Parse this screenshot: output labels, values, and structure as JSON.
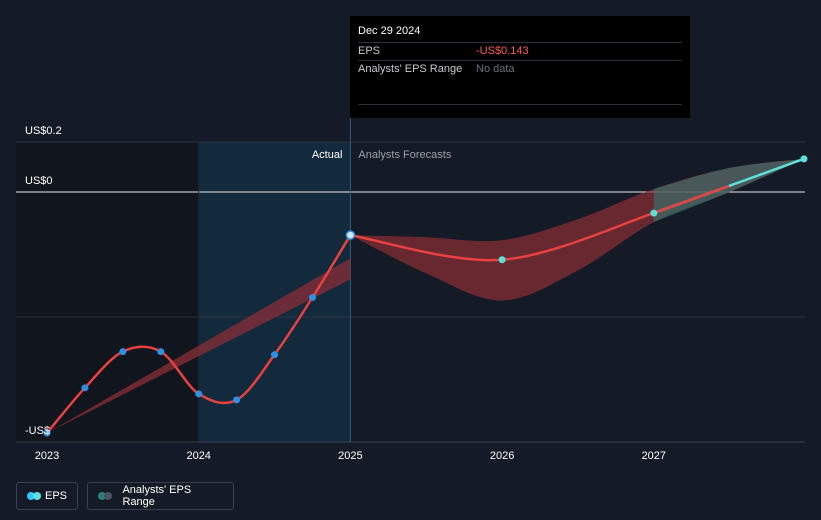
{
  "tooltip": {
    "date": "Dec 29 2024",
    "rows": [
      {
        "label": "EPS",
        "value": "-US$0.143",
        "color": "#ff5a5a"
      },
      {
        "label": "Analysts' EPS Range",
        "value": "No data",
        "color": "#6b7079"
      }
    ]
  },
  "legend": [
    {
      "label": "EPS",
      "colors": [
        "#35c7ff",
        "#5ce0d8"
      ]
    },
    {
      "label": "Analysts' EPS Range",
      "colors": [
        "#2e7f7a",
        "#4a5566"
      ]
    }
  ],
  "chart_data": {
    "type": "line",
    "y_tick_labels": [
      "US$0.2",
      "US$0",
      "-US$"
    ],
    "x_tick_labels": [
      "2023",
      "2024",
      "2025",
      "2026",
      "2027"
    ],
    "section_labels": {
      "actual": "Actual",
      "forecast": "Analysts Forecasts"
    },
    "x_range": [
      2023.0,
      2027.99
    ],
    "y_range": [
      -0.8,
      0.2
    ],
    "colors": {
      "line": "#e8413f",
      "forecast_marker": "#5ce0d8",
      "actual_marker": "#2f8fe0",
      "range_fill": "#8b2e35",
      "range_fill_up": "#2e7f7a"
    },
    "series": [
      {
        "type": "actual",
        "x": [
          2023.0,
          2023.25,
          2023.5,
          2023.75,
          2024.0,
          2024.25,
          2024.5,
          2024.75,
          2025.0
        ],
        "y": [
          -0.8,
          -0.65,
          -0.53,
          -0.53,
          -0.67,
          -0.69,
          -0.54,
          -0.35,
          -0.143
        ]
      },
      {
        "type": "forecast",
        "x": [
          2025.0,
          2026.0,
          2027.0,
          2027.99
        ],
        "y": [
          -0.143,
          -0.225,
          -0.07,
          0.11
        ]
      }
    ],
    "range_band_actual": {
      "x": [
        2023.0,
        2025.0
      ],
      "y_low": [
        -0.8,
        -0.29
      ],
      "y_high": [
        -0.8,
        -0.22
      ]
    },
    "range_band_forecast": {
      "x": [
        2025.0,
        2025.5,
        2026.0,
        2026.5,
        2027.0,
        2027.5,
        2027.99
      ],
      "y_low": [
        -0.143,
        -0.27,
        -0.36,
        -0.26,
        -0.1,
        0.0,
        0.11
      ],
      "y_high": [
        -0.143,
        -0.15,
        -0.16,
        -0.09,
        0.01,
        0.08,
        0.11
      ]
    }
  }
}
